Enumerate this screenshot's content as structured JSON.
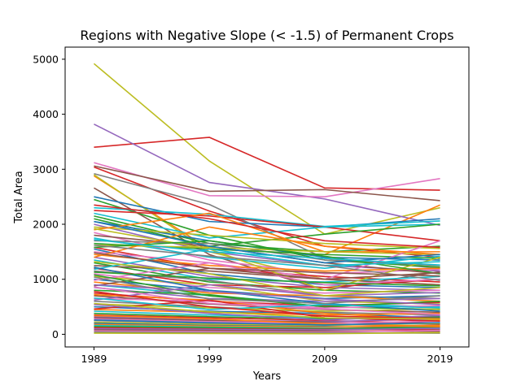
{
  "chart_data": {
    "type": "line",
    "title": "Regions with Negative Slope (< -1.5) of Permanent Crops",
    "xlabel": "Years",
    "ylabel": "Total Area",
    "x": [
      1989,
      1999,
      2009,
      2019
    ],
    "x_tick_labels": [
      "1989",
      "1999",
      "2009",
      "2019"
    ],
    "y_ticks": [
      0,
      1000,
      2000,
      3000,
      4000,
      5000
    ],
    "y_tick_labels": [
      "0",
      "1000",
      "2000",
      "3000",
      "4000",
      "5000"
    ],
    "xlim": [
      1986.5,
      2021.5
    ],
    "ylim": [
      -230,
      5220
    ],
    "grid": false,
    "legend": "none",
    "colors": [
      "#1f77b4",
      "#ff7f0e",
      "#2ca02c",
      "#d62728",
      "#9467bd",
      "#8c564b",
      "#e377c2",
      "#7f7f7f",
      "#bcbd22",
      "#17becf"
    ],
    "series": [
      {
        "values": [
          4920,
          3150,
          1820,
          2300
        ],
        "color": "#bcbd22"
      },
      {
        "values": [
          3400,
          3580,
          2660,
          2620
        ],
        "color": "#d62728"
      },
      {
        "values": [
          3820,
          2760,
          2460,
          1980
        ],
        "color": "#9467bd"
      },
      {
        "values": [
          3120,
          2520,
          2500,
          2830
        ],
        "color": "#e377c2"
      },
      {
        "values": [
          3060,
          2600,
          2630,
          2430
        ],
        "color": "#8c564b"
      },
      {
        "values": [
          3040,
          2240,
          1600,
          1400
        ],
        "color": "#d62728"
      },
      {
        "values": [
          2920,
          2360,
          1380,
          1200
        ],
        "color": "#7f7f7f"
      },
      {
        "values": [
          2880,
          1550,
          1450,
          2350
        ],
        "color": "#ff7f0e"
      },
      {
        "values": [
          2900,
          1500,
          1000,
          900
        ],
        "color": "#bcbd22"
      },
      {
        "values": [
          2660,
          1450,
          800,
          1140
        ],
        "color": "#8c564b"
      },
      {
        "values": [
          2500,
          2050,
          1950,
          2100
        ],
        "color": "#1f77b4"
      },
      {
        "values": [
          2450,
          1800,
          1350,
          1220
        ],
        "color": "#2ca02c"
      },
      {
        "values": [
          2300,
          2180,
          1960,
          2060
        ],
        "color": "#17becf"
      },
      {
        "values": [
          2250,
          2150,
          1950,
          1700
        ],
        "color": "#d62728"
      },
      {
        "values": [
          2200,
          1750,
          1950,
          2000
        ],
        "color": "#17becf"
      },
      {
        "values": [
          2150,
          1650,
          1500,
          1600
        ],
        "color": "#2ca02c"
      },
      {
        "values": [
          2100,
          1600,
          1820,
          2000
        ],
        "color": "#2ca02c"
      },
      {
        "values": [
          2050,
          1700,
          1400,
          1350
        ],
        "color": "#1f77b4"
      },
      {
        "values": [
          2000,
          1500,
          1250,
          1150
        ],
        "color": "#9467bd"
      },
      {
        "values": [
          1950,
          1800,
          1650,
          1560
        ],
        "color": "#bcbd22"
      },
      {
        "values": [
          1900,
          2200,
          1500,
          1500
        ],
        "color": "#ff7f0e"
      },
      {
        "values": [
          1850,
          1350,
          1100,
          1180
        ],
        "color": "#e377c2"
      },
      {
        "values": [
          1800,
          1600,
          1300,
          1100
        ],
        "color": "#8c564b"
      },
      {
        "values": [
          1750,
          1400,
          1200,
          1420
        ],
        "color": "#17becf"
      },
      {
        "values": [
          1700,
          1650,
          1350,
          1250
        ],
        "color": "#7f7f7f"
      },
      {
        "values": [
          1650,
          1550,
          1450,
          1380
        ],
        "color": "#2ca02c"
      },
      {
        "values": [
          1620,
          1580,
          1500,
          1450
        ],
        "color": "#bcbd22"
      },
      {
        "values": [
          1580,
          1200,
          1050,
          950
        ],
        "color": "#d62728"
      },
      {
        "values": [
          1550,
          1100,
          900,
          850
        ],
        "color": "#1f77b4"
      },
      {
        "values": [
          1500,
          1300,
          1000,
          1700
        ],
        "color": "#e377c2"
      },
      {
        "values": [
          1450,
          1250,
          1150,
          1200
        ],
        "color": "#ff7f0e"
      },
      {
        "values": [
          1400,
          1050,
          850,
          800
        ],
        "color": "#9467bd"
      },
      {
        "values": [
          1350,
          1000,
          950,
          1050
        ],
        "color": "#17becf"
      },
      {
        "values": [
          1300,
          950,
          800,
          750
        ],
        "color": "#2ca02c"
      },
      {
        "values": [
          1250,
          1150,
          1000,
          900
        ],
        "color": "#8c564b"
      },
      {
        "values": [
          1200,
          900,
          850,
          1000
        ],
        "color": "#d62728"
      },
      {
        "values": [
          1150,
          980,
          700,
          650
        ],
        "color": "#7f7f7f"
      },
      {
        "values": [
          1100,
          850,
          750,
          800
        ],
        "color": "#e377c2"
      },
      {
        "values": [
          1050,
          900,
          600,
          550
        ],
        "color": "#bcbd22"
      },
      {
        "values": [
          1000,
          800,
          650,
          700
        ],
        "color": "#1f77b4"
      },
      {
        "values": [
          950,
          750,
          700,
          600
        ],
        "color": "#ff7f0e"
      },
      {
        "values": [
          900,
          700,
          550,
          500
        ],
        "color": "#17becf"
      },
      {
        "values": [
          850,
          650,
          600,
          650
        ],
        "color": "#9467bd"
      },
      {
        "values": [
          800,
          720,
          500,
          450
        ],
        "color": "#2ca02c"
      },
      {
        "values": [
          750,
          600,
          520,
          580
        ],
        "color": "#d62728"
      },
      {
        "values": [
          700,
          550,
          450,
          400
        ],
        "color": "#8c564b"
      },
      {
        "values": [
          650,
          600,
          480,
          520
        ],
        "color": "#e377c2"
      },
      {
        "values": [
          600,
          500,
          400,
          350
        ],
        "color": "#7f7f7f"
      },
      {
        "values": [
          550,
          480,
          420,
          460
        ],
        "color": "#bcbd22"
      },
      {
        "values": [
          500,
          420,
          380,
          300
        ],
        "color": "#1f77b4"
      },
      {
        "values": [
          450,
          400,
          350,
          380
        ],
        "color": "#ff7f0e"
      },
      {
        "values": [
          420,
          350,
          300,
          250
        ],
        "color": "#17becf"
      },
      {
        "values": [
          380,
          320,
          280,
          320
        ],
        "color": "#2ca02c"
      },
      {
        "values": [
          350,
          300,
          250,
          200
        ],
        "color": "#d62728"
      },
      {
        "values": [
          320,
          260,
          230,
          280
        ],
        "color": "#9467bd"
      },
      {
        "values": [
          300,
          250,
          220,
          180
        ],
        "color": "#8c564b"
      },
      {
        "values": [
          280,
          230,
          200,
          240
        ],
        "color": "#e377c2"
      },
      {
        "values": [
          250,
          200,
          180,
          150
        ],
        "color": "#7f7f7f"
      },
      {
        "values": [
          220,
          180,
          160,
          200
        ],
        "color": "#bcbd22"
      },
      {
        "values": [
          200,
          160,
          140,
          120
        ],
        "color": "#1f77b4"
      },
      {
        "values": [
          180,
          150,
          130,
          160
        ],
        "color": "#ff7f0e"
      },
      {
        "values": [
          160,
          130,
          110,
          100
        ],
        "color": "#17becf"
      },
      {
        "values": [
          140,
          120,
          100,
          130
        ],
        "color": "#2ca02c"
      },
      {
        "values": [
          120,
          100,
          90,
          80
        ],
        "color": "#d62728"
      },
      {
        "values": [
          100,
          90,
          80,
          110
        ],
        "color": "#9467bd"
      },
      {
        "values": [
          80,
          70,
          60,
          50
        ],
        "color": "#8c564b"
      },
      {
        "values": [
          60,
          50,
          40,
          70
        ],
        "color": "#e377c2"
      },
      {
        "values": [
          40,
          30,
          25,
          20
        ],
        "color": "#7f7f7f"
      },
      {
        "values": [
          20,
          15,
          10,
          30
        ],
        "color": "#bcbd22"
      },
      {
        "values": [
          1920,
          1550,
          800,
          1400
        ],
        "color": "#bcbd22"
      },
      {
        "values": [
          1400,
          1950,
          1600,
          1450
        ],
        "color": "#ff7f0e"
      },
      {
        "values": [
          2050,
          1600,
          1300,
          1450
        ],
        "color": "#1f77b4"
      },
      {
        "values": [
          1580,
          1700,
          1420,
          1100
        ],
        "color": "#2ca02c"
      },
      {
        "values": [
          2350,
          2100,
          1700,
          1580
        ],
        "color": "#d62728"
      },
      {
        "values": [
          1180,
          1550,
          1250,
          1320
        ],
        "color": "#17becf"
      },
      {
        "values": [
          980,
          1300,
          900,
          1000
        ],
        "color": "#e377c2"
      },
      {
        "values": [
          880,
          1200,
          1000,
          1120
        ],
        "color": "#8c564b"
      },
      {
        "values": [
          620,
          900,
          700,
          760
        ],
        "color": "#9467bd"
      },
      {
        "values": [
          720,
          620,
          380,
          260
        ],
        "color": "#ff7f0e"
      },
      {
        "values": [
          460,
          620,
          300,
          240
        ],
        "color": "#d62728"
      },
      {
        "values": [
          1620,
          1420,
          1250,
          980
        ],
        "color": "#7f7f7f"
      },
      {
        "values": [
          1720,
          1500,
          1380,
          1260
        ],
        "color": "#17becf"
      },
      {
        "values": [
          1320,
          1100,
          700,
          850
        ],
        "color": "#bcbd22"
      },
      {
        "values": [
          1220,
          800,
          560,
          420
        ],
        "color": "#1f77b4"
      },
      {
        "values": [
          1080,
          700,
          500,
          600
        ],
        "color": "#2ca02c"
      },
      {
        "values": [
          540,
          380,
          260,
          340
        ],
        "color": "#9467bd"
      },
      {
        "values": [
          860,
          560,
          460,
          360
        ],
        "color": "#e377c2"
      },
      {
        "values": [
          1480,
          1200,
          1120,
          1060
        ],
        "color": "#8c564b"
      },
      {
        "values": [
          660,
          450,
          540,
          480
        ],
        "color": "#17becf"
      },
      {
        "values": [
          340,
          280,
          190,
          140
        ],
        "color": "#ff7f0e"
      },
      {
        "values": [
          780,
          500,
          330,
          290
        ],
        "color": "#d62728"
      },
      {
        "values": [
          1040,
          640,
          560,
          700
        ],
        "color": "#7f7f7f"
      },
      {
        "values": [
          260,
          210,
          170,
          210
        ],
        "color": "#1f77b4"
      },
      {
        "values": [
          560,
          410,
          300,
          280
        ],
        "color": "#bcbd22"
      },
      {
        "values": [
          900,
          780,
          640,
          540
        ],
        "color": "#9467bd"
      },
      {
        "values": [
          1130,
          1020,
          940,
          880
        ],
        "color": "#2ca02c"
      }
    ]
  }
}
